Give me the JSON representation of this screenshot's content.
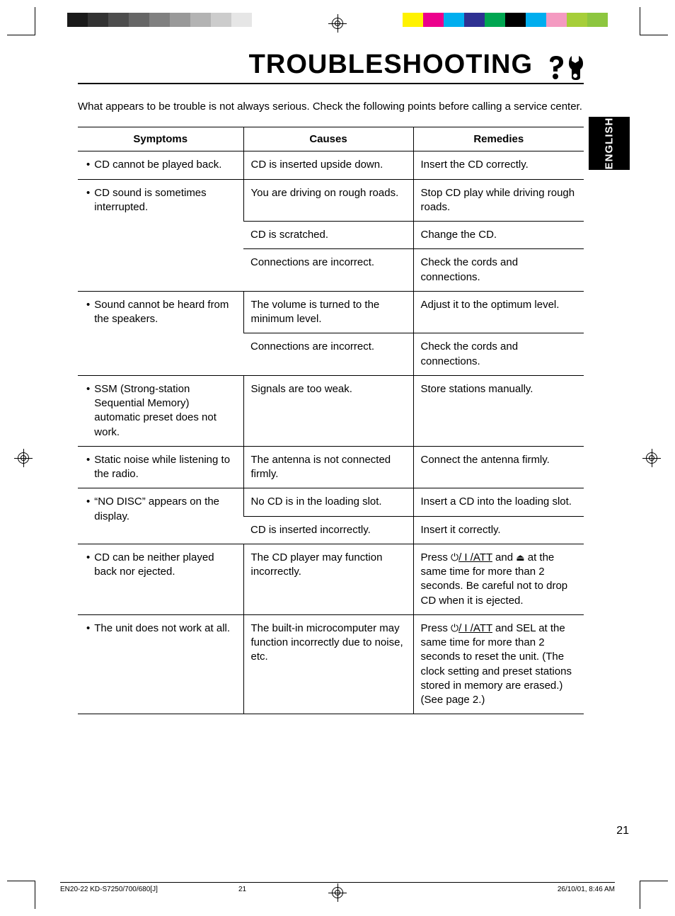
{
  "title": "TROUBLESHOOTING",
  "intro": "What appears to be trouble is not always serious. Check the following points before calling a service center.",
  "language_tab": "ENGLISH",
  "headers": {
    "symptoms": "Symptoms",
    "causes": "Causes",
    "remedies": "Remedies"
  },
  "rows": [
    {
      "symptom": "CD cannot be played back.",
      "cause": "CD is inserted upside down.",
      "remedy": "Insert the CD correctly."
    },
    {
      "symptom": "CD sound is sometimes interrupted.",
      "cause": "You are driving on rough roads.",
      "remedy": "Stop CD play while driving rough roads."
    },
    {
      "symptom": "",
      "cause": "CD is scratched.",
      "remedy": "Change the CD."
    },
    {
      "symptom": "",
      "cause": "Connections are incorrect.",
      "remedy": "Check the cords and connections."
    },
    {
      "symptom": "Sound cannot be heard from the speakers.",
      "cause": "The volume is turned to the minimum level.",
      "remedy": "Adjust it to the optimum level."
    },
    {
      "symptom": "",
      "cause": "Connections are incorrect.",
      "remedy": "Check the cords and connections."
    },
    {
      "symptom": "SSM (Strong-station Sequential Memory) automatic preset does not work.",
      "cause": "Signals are too weak.",
      "remedy": "Store stations manually."
    },
    {
      "symptom": "Static noise while listening to the radio.",
      "cause": "The antenna is not connected firmly.",
      "remedy": "Connect the antenna firmly."
    },
    {
      "symptom": "“NO DISC” appears on the display.",
      "cause": "No CD is in the loading slot.",
      "remedy": "Insert a CD into the loading slot."
    },
    {
      "symptom": "",
      "cause": "CD is inserted incorrectly.",
      "remedy": "Insert it correctly."
    },
    {
      "symptom": "CD can be neither played back nor ejected.",
      "cause": "The CD player may function incorrectly.",
      "remedy_pre": "Press ",
      "remedy_btn1": "/ I /ATT",
      "remedy_mid": " and ",
      "remedy_btn2": "",
      "remedy_post": " at the same time for more than 2 seconds. Be careful not to drop CD when it is ejected."
    },
    {
      "symptom": "The unit does not work at all.",
      "cause": "The built-in microcomputer may function incorrectly due to noise, etc.",
      "remedy_pre": "Press ",
      "remedy_btn1": "/ I /ATT",
      "remedy_post2": " and SEL at the same time for more than 2 seconds to reset the unit. (The clock setting and preset stations stored in memory are erased.) (See page 2.)"
    }
  ],
  "color_bar_left": [
    "#1a1a1a",
    "#333333",
    "#4d4d4d",
    "#666666",
    "#808080",
    "#999999",
    "#b3b3b3",
    "#cccccc",
    "#e6e6e6",
    "#ffffff"
  ],
  "color_bar_right": [
    "#fff200",
    "#ec008c",
    "#00aeef",
    "#2e3192",
    "#00a651",
    "#000000",
    "#00adee",
    "#f49ac1",
    "#a6ce39",
    "#8dc63f"
  ],
  "page_number": "21",
  "footer": {
    "doc": "EN20-22 KD-S7250/700/680[J]",
    "page": "21",
    "date": "26/10/01, 8:46 AM"
  }
}
